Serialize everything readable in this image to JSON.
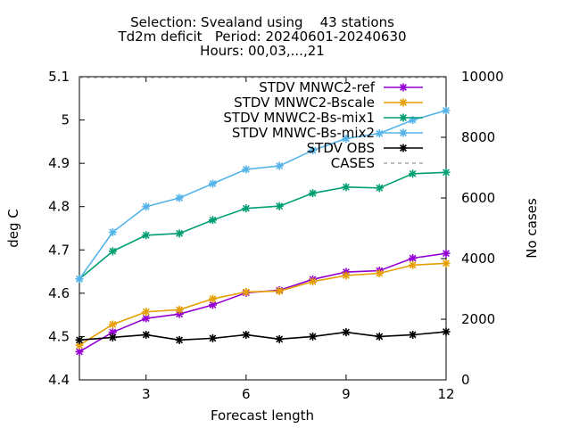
{
  "chart_data": {
    "type": "line",
    "title": [
      "Selection: Svealand using    43 stations",
      "Td2m deficit   Period: 20240601-20240630",
      "Hours: 00,03,...,21"
    ],
    "xlabel": "Forecast length",
    "ylabel": "deg C",
    "y2label": "No cases",
    "xlim": [
      1,
      12
    ],
    "ylim": [
      4.4,
      5.1
    ],
    "y2lim": [
      0,
      10000
    ],
    "xticks": [
      3,
      6,
      9,
      12
    ],
    "yticks": [
      4.4,
      4.5,
      4.6,
      4.7,
      4.8,
      4.9,
      5,
      5.1
    ],
    "y2ticks": [
      0,
      2000,
      4000,
      6000,
      8000,
      10000
    ],
    "legend_position": "top-right",
    "grid": false,
    "x": [
      1,
      2,
      3,
      4,
      5,
      6,
      7,
      8,
      9,
      10,
      11,
      12
    ],
    "series": [
      {
        "name": "STDV MNWC2-ref",
        "color": "#9400d3",
        "axis": "y",
        "values": [
          4.465,
          4.51,
          4.542,
          4.552,
          4.573,
          4.601,
          4.607,
          4.632,
          4.649,
          4.652,
          4.681,
          4.692
        ]
      },
      {
        "name": "STDV MNWC2-Bscale",
        "color": "#e69f00",
        "axis": "y",
        "values": [
          4.48,
          4.528,
          4.557,
          4.562,
          4.587,
          4.603,
          4.605,
          4.627,
          4.641,
          4.646,
          4.665,
          4.669
        ]
      },
      {
        "name": "STDV MNWC2-Bs-mix1",
        "color": "#009e73",
        "axis": "y",
        "values": [
          4.633,
          4.697,
          4.734,
          4.738,
          4.769,
          4.796,
          4.801,
          4.831,
          4.845,
          4.843,
          4.876,
          4.879
        ]
      },
      {
        "name": "STDV MNWC-Bs-mix2",
        "color": "#56b4e9",
        "axis": "y",
        "values": [
          4.633,
          4.741,
          4.8,
          4.82,
          4.853,
          4.886,
          4.894,
          4.93,
          4.957,
          4.969,
          5.0,
          5.022
        ]
      },
      {
        "name": "STDV OBS",
        "color": "#000000",
        "axis": "y",
        "values": [
          4.492,
          4.498,
          4.504,
          4.492,
          4.496,
          4.504,
          4.494,
          4.5,
          4.51,
          4.5,
          4.504,
          4.511
        ]
      },
      {
        "name": "CASES",
        "color": "#999999",
        "axis": "y2",
        "dashed": true,
        "values": [
          9970,
          9970,
          9970,
          9970,
          9970,
          9970,
          9970,
          9970,
          9970,
          9970,
          9970,
          9970
        ]
      }
    ]
  }
}
